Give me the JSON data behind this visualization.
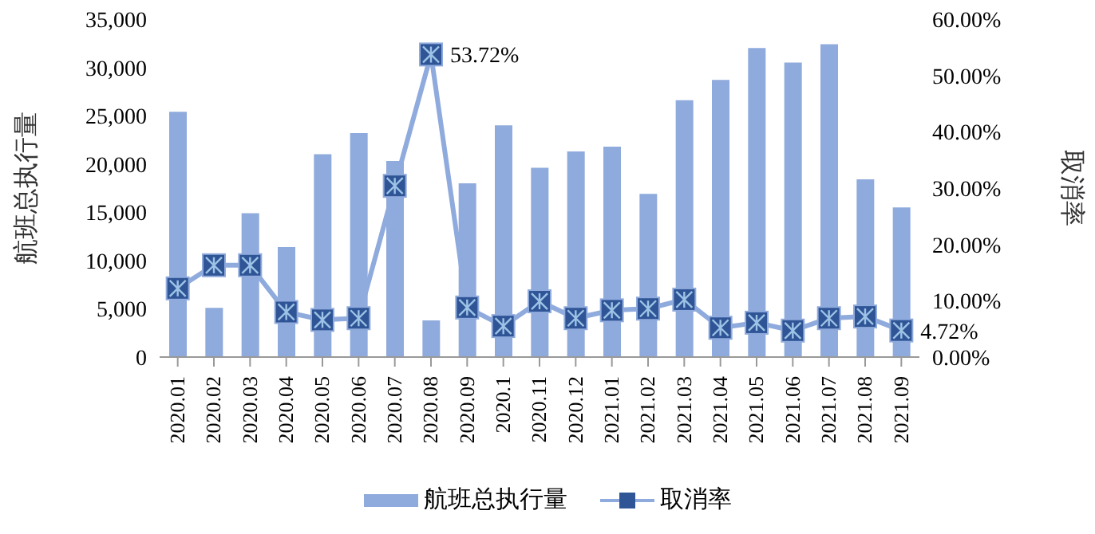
{
  "chart_data": {
    "type": "bar",
    "categories": [
      "2020.01",
      "2020.02",
      "2020.03",
      "2020.04",
      "2020.05",
      "2020.06",
      "2020.07",
      "2020.08",
      "2020.09",
      "2020.1",
      "2020.11",
      "2020.12",
      "2021.01",
      "2021.02",
      "2021.03",
      "2021.04",
      "2021.05",
      "2021.06",
      "2021.07",
      "2021.08",
      "2021.09"
    ],
    "ylabel": "航班总执行量",
    "y2label": "取消率",
    "series": [
      {
        "name": "航班总执行量",
        "color": "#8faadc",
        "values": [
          25400,
          5100,
          14900,
          11400,
          21000,
          23200,
          20300,
          3800,
          18000,
          24000,
          19600,
          21300,
          21800,
          16900,
          26600,
          28700,
          32000,
          30500,
          32400,
          18400,
          15500
        ]
      },
      {
        "name": "取消率",
        "type": "line",
        "axis": "y2",
        "color": "#8faadc",
        "marker": "square",
        "values": [
          12.2,
          16.3,
          16.3,
          8.0,
          6.6,
          6.9,
          30.4,
          53.72,
          8.8,
          5.5,
          9.9,
          6.9,
          8.3,
          8.6,
          10.2,
          5.2,
          6.1,
          4.7,
          6.9,
          7.2,
          4.72
        ],
        "value_labels": [
          null,
          null,
          null,
          null,
          null,
          null,
          null,
          "53.72%",
          null,
          null,
          null,
          null,
          null,
          null,
          null,
          null,
          null,
          null,
          null,
          null,
          "4.72%"
        ]
      }
    ],
    "ylim": [
      0,
      35000
    ],
    "yticks": [
      {
        "value": 0,
        "label": "0"
      },
      {
        "value": 5000,
        "label": "5,000"
      },
      {
        "value": 10000,
        "label": "10,000"
      },
      {
        "value": 15000,
        "label": "15,000"
      },
      {
        "value": 20000,
        "label": "20,000"
      },
      {
        "value": 25000,
        "label": "25,000"
      },
      {
        "value": 30000,
        "label": "30,000"
      },
      {
        "value": 35000,
        "label": "35,000"
      }
    ],
    "y2lim": [
      0,
      60
    ],
    "y2ticks": [
      {
        "value": 0,
        "label": "0.00%"
      },
      {
        "value": 10,
        "label": "10.00%"
      },
      {
        "value": 20,
        "label": "20.00%"
      },
      {
        "value": 30,
        "label": "30.00%"
      },
      {
        "value": 40,
        "label": "40.00%"
      },
      {
        "value": 50,
        "label": "50.00%"
      },
      {
        "value": 60,
        "label": "60.00%"
      }
    ],
    "grid": false,
    "legend": "bottom"
  }
}
